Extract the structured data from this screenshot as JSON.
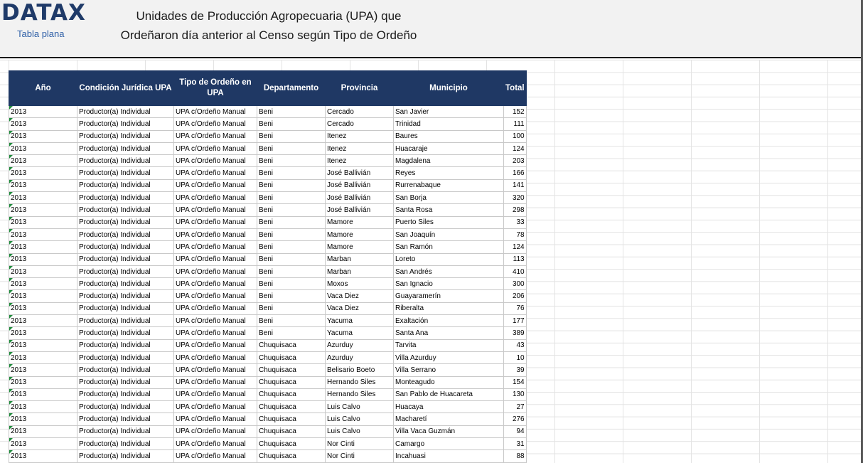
{
  "header": {
    "logo": "DATAX",
    "subtitle": "Tabla plana",
    "title_line1": "Unidades de Producción Agropecuaria (UPA) que",
    "title_line2": "Ordeñaron día anterior al Censo según Tipo de Ordeño"
  },
  "table": {
    "headers": [
      "Año",
      "Condición Jurídica UPA",
      "Tipo de Ordeño en UPA",
      "Departamento",
      "Provincia",
      "Municipio",
      "Total"
    ],
    "rows": [
      [
        "2013",
        "Productor(a) Individual",
        "UPA c/Ordeño Manual",
        "Beni",
        "Cercado",
        "San Javier",
        "152"
      ],
      [
        "2013",
        "Productor(a) Individual",
        "UPA c/Ordeño Manual",
        "Beni",
        "Cercado",
        "Trinidad",
        "111"
      ],
      [
        "2013",
        "Productor(a) Individual",
        "UPA c/Ordeño Manual",
        "Beni",
        "Itenez",
        "Baures",
        "100"
      ],
      [
        "2013",
        "Productor(a) Individual",
        "UPA c/Ordeño Manual",
        "Beni",
        "Itenez",
        "Huacaraje",
        "124"
      ],
      [
        "2013",
        "Productor(a) Individual",
        "UPA c/Ordeño Manual",
        "Beni",
        "Itenez",
        "Magdalena",
        "203"
      ],
      [
        "2013",
        "Productor(a) Individual",
        "UPA c/Ordeño Manual",
        "Beni",
        "José Ballivián",
        "Reyes",
        "166"
      ],
      [
        "2013",
        "Productor(a) Individual",
        "UPA c/Ordeño Manual",
        "Beni",
        "José Ballivián",
        "Rurrenabaque",
        "141"
      ],
      [
        "2013",
        "Productor(a) Individual",
        "UPA c/Ordeño Manual",
        "Beni",
        "José Ballivián",
        "San Borja",
        "320"
      ],
      [
        "2013",
        "Productor(a) Individual",
        "UPA c/Ordeño Manual",
        "Beni",
        "José Ballivián",
        "Santa Rosa",
        "298"
      ],
      [
        "2013",
        "Productor(a) Individual",
        "UPA c/Ordeño Manual",
        "Beni",
        "Mamore",
        "Puerto Siles",
        "33"
      ],
      [
        "2013",
        "Productor(a) Individual",
        "UPA c/Ordeño Manual",
        "Beni",
        "Mamore",
        "San Joaquín",
        "78"
      ],
      [
        "2013",
        "Productor(a) Individual",
        "UPA c/Ordeño Manual",
        "Beni",
        "Mamore",
        "San Ramón",
        "124"
      ],
      [
        "2013",
        "Productor(a) Individual",
        "UPA c/Ordeño Manual",
        "Beni",
        "Marban",
        "Loreto",
        "113"
      ],
      [
        "2013",
        "Productor(a) Individual",
        "UPA c/Ordeño Manual",
        "Beni",
        "Marban",
        "San Andrés",
        "410"
      ],
      [
        "2013",
        "Productor(a) Individual",
        "UPA c/Ordeño Manual",
        "Beni",
        "Moxos",
        "San Ignacio",
        "300"
      ],
      [
        "2013",
        "Productor(a) Individual",
        "UPA c/Ordeño Manual",
        "Beni",
        "Vaca Diez",
        "Guayaramerín",
        "206"
      ],
      [
        "2013",
        "Productor(a) Individual",
        "UPA c/Ordeño Manual",
        "Beni",
        "Vaca Diez",
        "Riberalta",
        "76"
      ],
      [
        "2013",
        "Productor(a) Individual",
        "UPA c/Ordeño Manual",
        "Beni",
        "Yacuma",
        "Exaltación",
        "177"
      ],
      [
        "2013",
        "Productor(a) Individual",
        "UPA c/Ordeño Manual",
        "Beni",
        "Yacuma",
        "Santa Ana",
        "389"
      ],
      [
        "2013",
        "Productor(a) Individual",
        "UPA c/Ordeño Manual",
        "Chuquisaca",
        "Azurduy",
        "Tarvita",
        "43"
      ],
      [
        "2013",
        "Productor(a) Individual",
        "UPA c/Ordeño Manual",
        "Chuquisaca",
        "Azurduy",
        "Villa Azurduy",
        "10"
      ],
      [
        "2013",
        "Productor(a) Individual",
        "UPA c/Ordeño Manual",
        "Chuquisaca",
        "Belisario Boeto",
        "Villa Serrano",
        "39"
      ],
      [
        "2013",
        "Productor(a) Individual",
        "UPA c/Ordeño Manual",
        "Chuquisaca",
        "Hernando Siles",
        "Monteagudo",
        "154"
      ],
      [
        "2013",
        "Productor(a) Individual",
        "UPA c/Ordeño Manual",
        "Chuquisaca",
        "Hernando Siles",
        "San Pablo de Huacareta",
        "130"
      ],
      [
        "2013",
        "Productor(a) Individual",
        "UPA c/Ordeño Manual",
        "Chuquisaca",
        "Luis Calvo",
        "Huacaya",
        "27"
      ],
      [
        "2013",
        "Productor(a) Individual",
        "UPA c/Ordeño Manual",
        "Chuquisaca",
        "Luis Calvo",
        "Macharetí",
        "276"
      ],
      [
        "2013",
        "Productor(a) Individual",
        "UPA c/Ordeño Manual",
        "Chuquisaca",
        "Luis Calvo",
        "Villa Vaca Guzmán",
        "94"
      ],
      [
        "2013",
        "Productor(a) Individual",
        "UPA c/Ordeño Manual",
        "Chuquisaca",
        "Nor Cinti",
        "Camargo",
        "31"
      ],
      [
        "2013",
        "Productor(a) Individual",
        "UPA c/Ordeño Manual",
        "Chuquisaca",
        "Nor Cinti",
        "Incahuasi",
        "88"
      ]
    ]
  },
  "colors": {
    "header_bg": "#1f3864",
    "logo": "#1f3a68",
    "subtitle": "#2e5fa7",
    "year_marker": "#1e8a3a"
  }
}
